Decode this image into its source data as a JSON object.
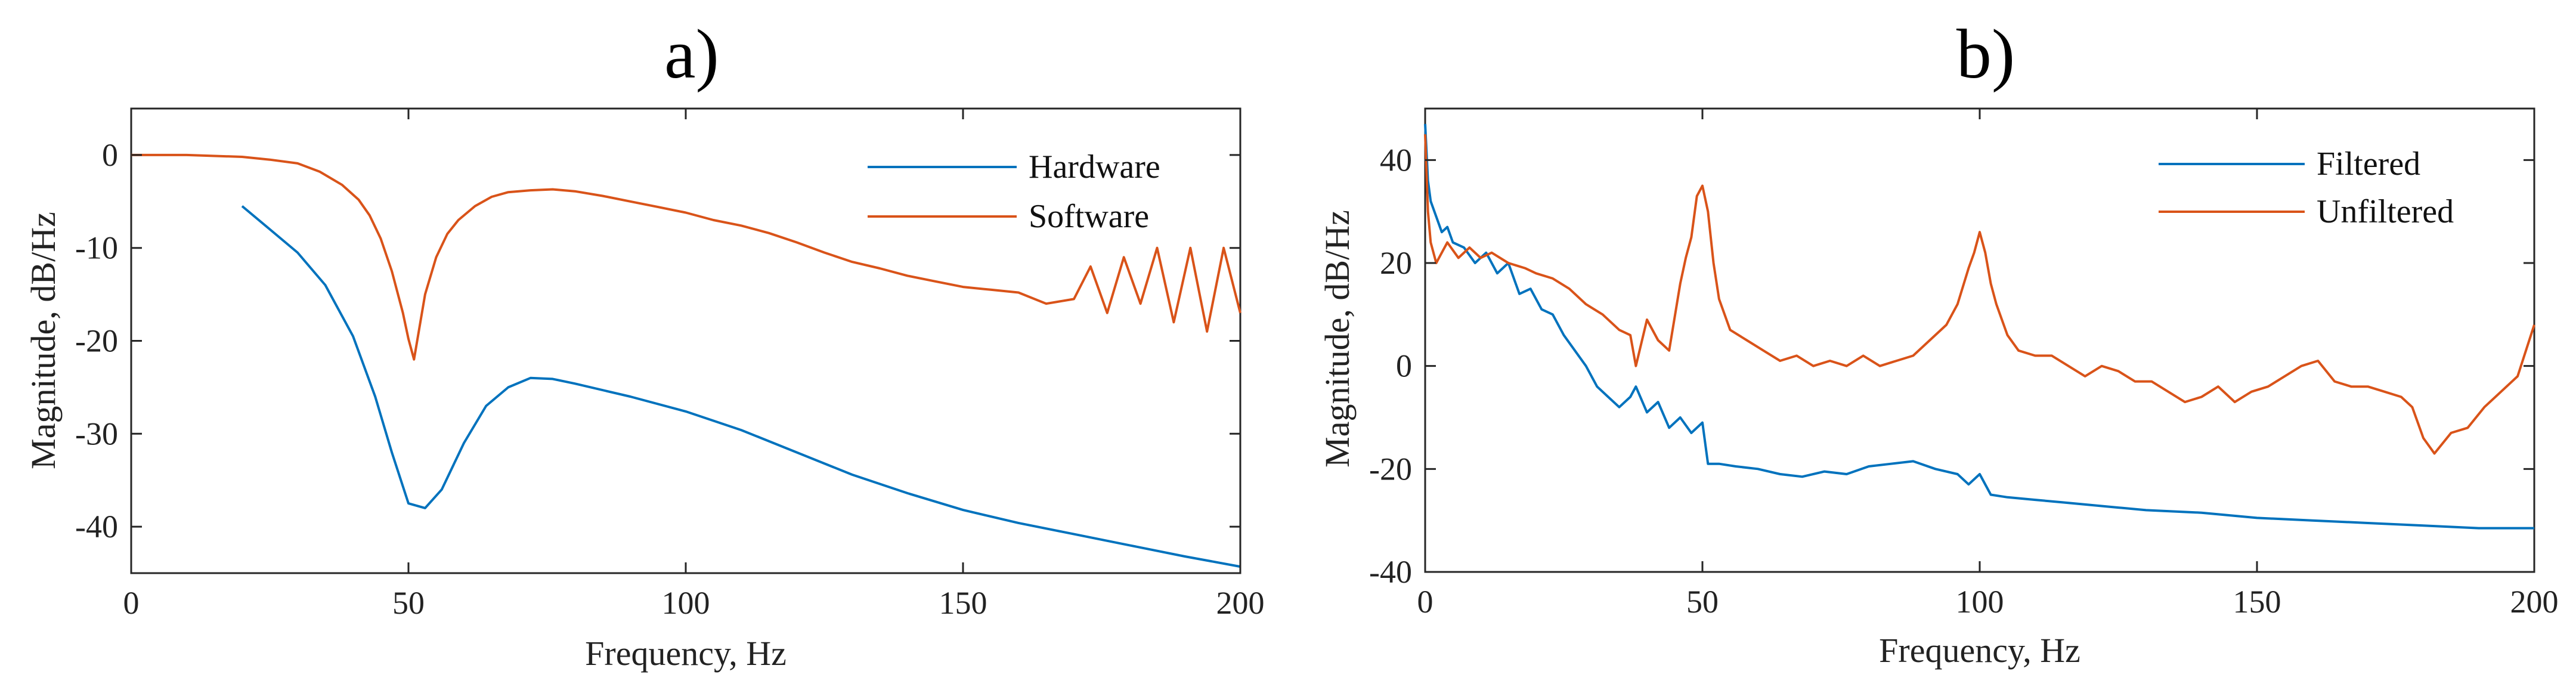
{
  "chart_data": [
    {
      "type": "line",
      "title": "a)",
      "xlabel": "Frequency, Hz",
      "ylabel": "Magnitude, dB/Hz",
      "xlim": [
        0,
        200
      ],
      "ylim": [
        -45,
        5
      ],
      "xticks": [
        0,
        50,
        100,
        150,
        200
      ],
      "yticks": [
        0,
        -10,
        -20,
        -30,
        -40
      ],
      "grid": false,
      "legend_position": "top-right",
      "series": [
        {
          "name": "Hardware",
          "color": "#0072bd",
          "x": [
            20,
            25,
            30,
            35,
            40,
            44,
            47,
            50,
            53,
            56,
            60,
            64,
            68,
            72,
            76,
            80,
            90,
            100,
            110,
            120,
            130,
            140,
            150,
            160,
            170,
            180,
            190,
            200
          ],
          "y": [
            -5.5,
            -8,
            -10.5,
            -14,
            -19.5,
            -26,
            -32,
            -37.5,
            -38,
            -36,
            -31,
            -27,
            -25,
            -24,
            -24.1,
            -24.6,
            -26,
            -27.6,
            -29.6,
            -32,
            -34.4,
            -36.4,
            -38.2,
            -39.6,
            -40.8,
            -42,
            -43.2,
            -44.3
          ]
        },
        {
          "name": "Software",
          "color": "#d95319",
          "x": [
            0,
            10,
            20,
            25,
            30,
            34,
            38,
            41,
            43,
            45,
            47,
            49,
            50,
            51,
            52,
            53,
            55,
            57,
            59,
            62,
            65,
            68,
            72,
            76,
            80,
            85,
            90,
            95,
            100,
            105,
            110,
            115,
            120,
            125,
            130,
            135,
            140,
            145,
            150,
            155,
            160,
            165,
            170,
            173,
            176,
            179,
            182,
            185,
            188,
            191,
            194,
            197,
            200
          ],
          "y": [
            0,
            0,
            -0.2,
            -0.5,
            -0.9,
            -1.8,
            -3.2,
            -4.8,
            -6.5,
            -9,
            -12.5,
            -17,
            -19.8,
            -22,
            -18.5,
            -15,
            -11,
            -8.5,
            -7,
            -5.5,
            -4.5,
            -4,
            -3.8,
            -3.7,
            -3.9,
            -4.4,
            -5,
            -5.6,
            -6.2,
            -7,
            -7.6,
            -8.4,
            -9.4,
            -10.5,
            -11.5,
            -12.2,
            -13,
            -13.6,
            -14.2,
            -14.5,
            -14.8,
            -16,
            -15.5,
            -12,
            -17,
            -11,
            -16,
            -10,
            -18,
            -10,
            -19,
            -10,
            -17
          ]
        }
      ]
    },
    {
      "type": "line",
      "title": "b)",
      "xlabel": "Frequency, Hz",
      "ylabel": "Magnitude, dB/Hz",
      "xlim": [
        0,
        200
      ],
      "ylim": [
        -40,
        50
      ],
      "xticks": [
        0,
        50,
        100,
        150,
        200
      ],
      "yticks": [
        40,
        20,
        0,
        -20,
        -40
      ],
      "grid": false,
      "legend_position": "top-right",
      "series": [
        {
          "name": "Filtered",
          "color": "#0072bd",
          "x": [
            0,
            0.5,
            1,
            2,
            3,
            4,
            5,
            7,
            9,
            11,
            13,
            15,
            17,
            19,
            21,
            23,
            25,
            27,
            29,
            31,
            33,
            35,
            37,
            38,
            40,
            42,
            44,
            46,
            48,
            50,
            51,
            53,
            56,
            60,
            64,
            68,
            72,
            76,
            80,
            84,
            88,
            92,
            96,
            98,
            100,
            102,
            105,
            110,
            115,
            120,
            125,
            130,
            140,
            150,
            160,
            170,
            180,
            190,
            200
          ],
          "y": [
            47,
            36,
            32,
            29,
            26,
            27,
            24,
            23,
            20,
            22,
            18,
            20,
            14,
            15,
            11,
            10,
            6,
            3,
            0,
            -4,
            -6,
            -8,
            -6,
            -4,
            -9,
            -7,
            -12,
            -10,
            -13,
            -11,
            -19,
            -19,
            -19.5,
            -20,
            -21,
            -21.5,
            -20.5,
            -21,
            -19.5,
            -19,
            -18.5,
            -20,
            -21,
            -23,
            -21,
            -25,
            -25.5,
            -26,
            -26.5,
            -27,
            -27.5,
            -28,
            -28.5,
            -29.5,
            -30,
            -30.5,
            -31,
            -31.5,
            -31.5
          ]
        },
        {
          "name": "Unfiltered",
          "color": "#d95319",
          "x": [
            0,
            0.5,
            1,
            2,
            3,
            4,
            6,
            8,
            10,
            12,
            15,
            18,
            20,
            23,
            26,
            29,
            32,
            35,
            37,
            38,
            40,
            42,
            44,
            46,
            47,
            48,
            49,
            50,
            51,
            52,
            53,
            55,
            58,
            61,
            64,
            67,
            70,
            73,
            76,
            79,
            82,
            85,
            88,
            91,
            94,
            96,
            98,
            99,
            100,
            101,
            102,
            103,
            105,
            107,
            110,
            113,
            116,
            119,
            122,
            125,
            128,
            131,
            134,
            137,
            140,
            143,
            146,
            149,
            152,
            155,
            158,
            161,
            164,
            167,
            170,
            173,
            176,
            178,
            180,
            182,
            185,
            188,
            191,
            194,
            197,
            200
          ],
          "y": [
            45,
            30,
            24,
            20,
            22,
            24,
            21,
            23,
            21,
            22,
            20,
            19,
            18,
            17,
            15,
            12,
            10,
            7,
            6,
            0,
            9,
            5,
            3,
            16,
            21,
            25,
            33,
            35,
            30,
            20,
            13,
            7,
            5,
            3,
            1,
            2,
            0,
            1,
            0,
            2,
            0,
            1,
            2,
            5,
            8,
            12,
            19,
            22,
            26,
            22,
            16,
            12,
            6,
            3,
            2,
            2,
            0,
            -2,
            0,
            -1,
            -3,
            -3,
            -5,
            -7,
            -6,
            -4,
            -7,
            -5,
            -4,
            -2,
            0,
            1,
            -3,
            -4,
            -4,
            -5,
            -6,
            -8,
            -14,
            -17,
            -13,
            -12,
            -8,
            -5,
            -2,
            8
          ]
        }
      ]
    }
  ]
}
